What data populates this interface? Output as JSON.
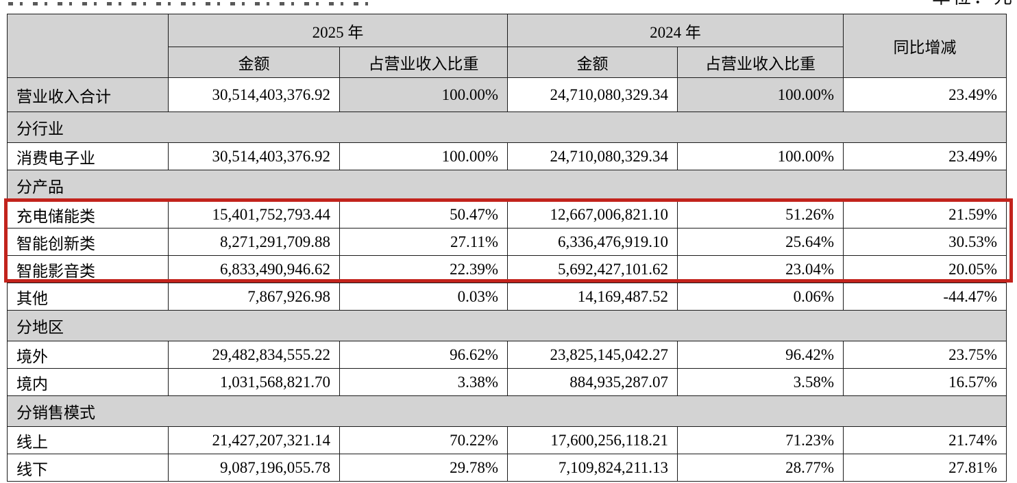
{
  "page": {
    "unit_note": "单位：元"
  },
  "table": {
    "header": {
      "corner": "",
      "col_2025": "2025 年",
      "col_2024": "2024 年",
      "sub_amount_2025": "金额",
      "sub_proportion_2025": "占营业收入比重",
      "sub_amount_2024": "金额",
      "sub_proportion_2024": "占营业收入比重",
      "col_yoy": "同比增减"
    },
    "rows": [
      {
        "kind": "total",
        "label": "营业收入合计",
        "values": [
          "30,514,403,376.92",
          "100.00%",
          "24,710,080,329.34",
          "100.00%",
          "23.49%"
        ],
        "shade": [
          "label",
          "p2025",
          "p2024"
        ]
      },
      {
        "kind": "section",
        "label": "分行业"
      },
      {
        "kind": "data",
        "label": "消费电子业",
        "values": [
          "30,514,403,376.92",
          "100.00%",
          "24,710,080,329.34",
          "100.00%",
          "23.49%"
        ]
      },
      {
        "kind": "section",
        "label": "分产品"
      },
      {
        "kind": "data",
        "label": "充电储能类",
        "values": [
          "15,401,752,793.44",
          "50.47%",
          "12,667,006,821.10",
          "51.26%",
          "21.59%"
        ],
        "highlighted": true
      },
      {
        "kind": "data",
        "label": "智能创新类",
        "values": [
          "8,271,291,709.88",
          "27.11%",
          "6,336,476,919.10",
          "25.64%",
          "30.53%"
        ],
        "highlighted": true
      },
      {
        "kind": "data",
        "label": "智能影音类",
        "values": [
          "6,833,490,946.62",
          "22.39%",
          "5,692,427,101.62",
          "23.04%",
          "20.05%"
        ],
        "highlighted": true
      },
      {
        "kind": "data",
        "label": "其他",
        "values": [
          "7,867,926.98",
          "0.03%",
          "14,169,487.52",
          "0.06%",
          "-44.47%"
        ]
      },
      {
        "kind": "section",
        "label": "分地区"
      },
      {
        "kind": "data",
        "label": "境外",
        "values": [
          "29,482,834,555.22",
          "96.62%",
          "23,825,145,042.27",
          "96.42%",
          "23.75%"
        ]
      },
      {
        "kind": "data",
        "label": "境内",
        "values": [
          "1,031,568,821.70",
          "3.38%",
          "884,935,287.07",
          "3.58%",
          "16.57%"
        ]
      },
      {
        "kind": "section",
        "label": "分销售模式"
      },
      {
        "kind": "data",
        "label": "线上",
        "values": [
          "21,427,207,321.14",
          "70.22%",
          "17,600,256,118.21",
          "71.23%",
          "21.74%"
        ]
      },
      {
        "kind": "data",
        "label": "线下",
        "values": [
          "9,087,196,055.78",
          "29.78%",
          "7,109,824,211.13",
          "28.77%",
          "27.81%"
        ]
      }
    ]
  },
  "colors": {
    "cell_shade": "#d3d3d3",
    "highlight_border": "#c2231c"
  }
}
